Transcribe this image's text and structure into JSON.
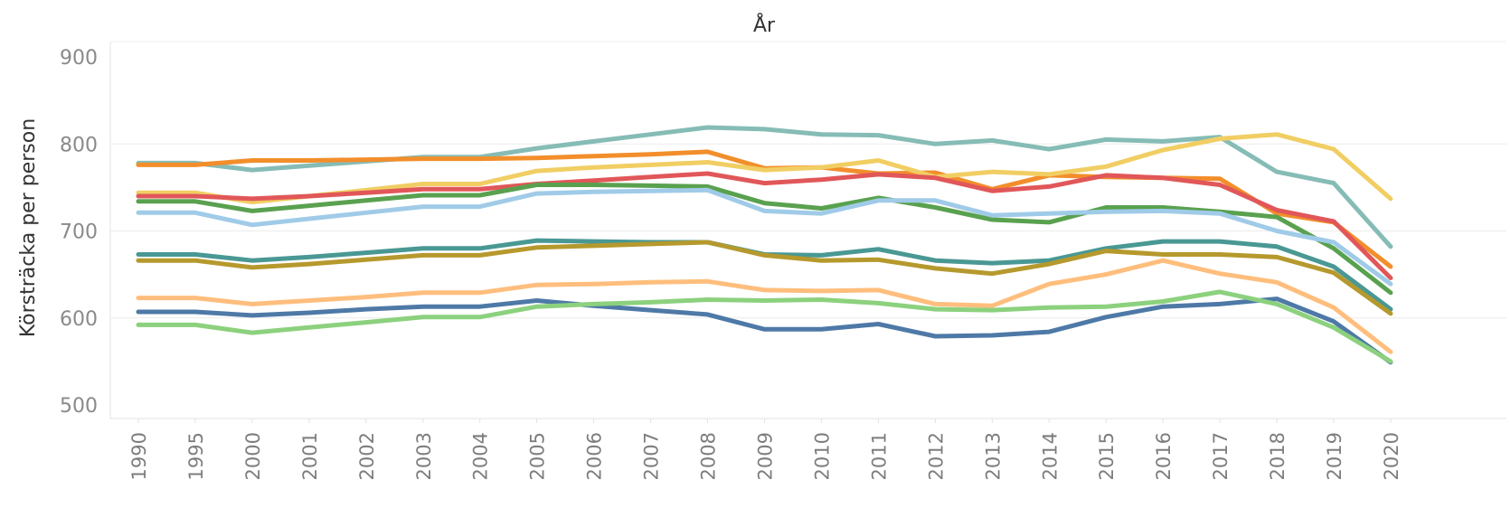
{
  "chart_data": {
    "type": "line",
    "title": "År",
    "xlabel": "",
    "ylabel": "Körsträcka per person",
    "ylim": [
      500,
      900
    ],
    "yticks": [
      500,
      600,
      700,
      800,
      900
    ],
    "grid": true,
    "x": [
      "1990",
      "1995",
      "2000",
      "2001",
      "2002",
      "2003",
      "2004",
      "2005",
      "2006",
      "2007",
      "2008",
      "2009",
      "2010",
      "2011",
      "2012",
      "2013",
      "2014",
      "2015",
      "2016",
      "2017",
      "2018",
      "2019",
      "2020"
    ],
    "series": [
      {
        "color": "#86bcb6",
        "values": [
          778,
          778,
          770,
          775,
          780,
          785,
          785,
          795,
          803,
          811,
          819,
          817,
          811,
          810,
          800,
          804,
          794,
          805,
          803,
          808,
          768,
          755,
          682
        ]
      },
      {
        "color": "#f28e2b",
        "values": [
          776,
          776,
          781,
          781,
          782,
          783,
          783,
          784,
          786,
          788,
          791,
          772,
          773,
          766,
          767,
          748,
          764,
          762,
          761,
          760,
          720,
          710,
          659
        ]
      },
      {
        "color": "#f1ce63",
        "values": [
          744,
          744,
          733,
          740,
          747,
          754,
          754,
          769,
          773,
          776,
          779,
          770,
          773,
          781,
          762,
          768,
          765,
          774,
          793,
          806,
          811,
          794,
          737
        ]
      },
      {
        "color": "#e15759",
        "values": [
          740,
          740,
          737,
          740,
          744,
          748,
          748,
          754,
          758,
          762,
          766,
          755,
          759,
          765,
          761,
          746,
          751,
          764,
          761,
          753,
          724,
          711,
          646
        ]
      },
      {
        "color": "#59a14f",
        "values": [
          734,
          734,
          723,
          729,
          735,
          741,
          741,
          753,
          753,
          752,
          751,
          732,
          726,
          738,
          727,
          713,
          710,
          727,
          727,
          722,
          716,
          680,
          629
        ]
      },
      {
        "color": "#a0cbe8",
        "values": [
          721,
          721,
          707,
          714,
          721,
          728,
          728,
          743,
          745,
          746,
          747,
          723,
          720,
          735,
          735,
          718,
          720,
          722,
          723,
          720,
          700,
          687,
          639
        ]
      },
      {
        "color": "#499894",
        "values": [
          673,
          673,
          666,
          670,
          675,
          680,
          680,
          689,
          688,
          687,
          687,
          673,
          672,
          679,
          666,
          663,
          666,
          680,
          688,
          688,
          682,
          659,
          610
        ]
      },
      {
        "color": "#b6992d",
        "values": [
          666,
          666,
          658,
          662,
          667,
          672,
          672,
          681,
          683,
          685,
          687,
          672,
          666,
          667,
          657,
          651,
          662,
          677,
          673,
          673,
          670,
          652,
          605
        ]
      },
      {
        "color": "#ffbe7d",
        "values": [
          623,
          623,
          616,
          620,
          624,
          629,
          629,
          638,
          639,
          641,
          642,
          632,
          631,
          632,
          616,
          614,
          639,
          650,
          666,
          651,
          641,
          612,
          561
        ]
      },
      {
        "color": "#4e79a7",
        "values": [
          607,
          607,
          603,
          606,
          610,
          613,
          613,
          620,
          614,
          609,
          604,
          587,
          587,
          593,
          579,
          580,
          584,
          601,
          613,
          616,
          622,
          596,
          549
        ]
      },
      {
        "color": "#8cd17d",
        "values": [
          592,
          592,
          583,
          589,
          595,
          601,
          601,
          613,
          616,
          618,
          621,
          620,
          621,
          617,
          610,
          609,
          612,
          613,
          619,
          630,
          616,
          589,
          550
        ]
      }
    ]
  }
}
